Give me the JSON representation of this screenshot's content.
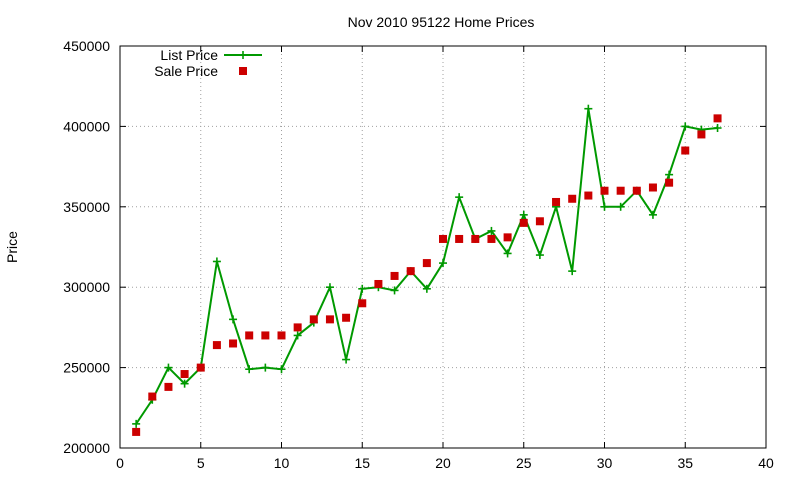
{
  "chart_data": {
    "type": "line",
    "title": "Nov 2010 95122 Home Prices",
    "xlabel": "",
    "ylabel": "Price",
    "xlim": [
      0,
      40
    ],
    "ylim": [
      200000,
      450000
    ],
    "x_ticks": [
      0,
      5,
      10,
      15,
      20,
      25,
      30,
      35,
      40
    ],
    "y_ticks": [
      200000,
      250000,
      300000,
      350000,
      400000,
      450000
    ],
    "grid": true,
    "legend_position": "top-left",
    "series": [
      {
        "name": "List Price",
        "kind": "line",
        "color": "#009900",
        "x": [
          1,
          2,
          3,
          4,
          5,
          6,
          7,
          8,
          9,
          10,
          11,
          12,
          13,
          14,
          15,
          16,
          17,
          18,
          19,
          20,
          21,
          22,
          23,
          24,
          25,
          26,
          27,
          28,
          29,
          30,
          31,
          32,
          33,
          34,
          35,
          36,
          37
        ],
        "values": [
          215000,
          230000,
          250000,
          240000,
          250000,
          316000,
          280000,
          249000,
          250000,
          249000,
          270000,
          278000,
          300000,
          255000,
          299000,
          300000,
          298000,
          310000,
          299000,
          315000,
          356000,
          330000,
          335000,
          321000,
          345000,
          320000,
          350000,
          310000,
          411000,
          350000,
          350000,
          360000,
          345000,
          370000,
          400000,
          398000,
          399000
        ]
      },
      {
        "name": "Sale Price",
        "kind": "scatter",
        "color": "#cc0000",
        "x": [
          1,
          2,
          3,
          4,
          5,
          6,
          7,
          8,
          9,
          10,
          11,
          12,
          13,
          14,
          15,
          16,
          17,
          18,
          19,
          20,
          21,
          22,
          23,
          24,
          25,
          26,
          27,
          28,
          29,
          30,
          31,
          32,
          33,
          34,
          35,
          36,
          37
        ],
        "values": [
          210000,
          232000,
          238000,
          246000,
          250000,
          264000,
          265000,
          270000,
          270000,
          270000,
          275000,
          280000,
          280000,
          281000,
          290000,
          302000,
          307000,
          310000,
          315000,
          330000,
          330000,
          330000,
          330000,
          331000,
          340000,
          341000,
          353000,
          355000,
          357000,
          360000,
          360000,
          360000,
          362000,
          365000,
          385000,
          395000,
          405000
        ]
      }
    ]
  }
}
